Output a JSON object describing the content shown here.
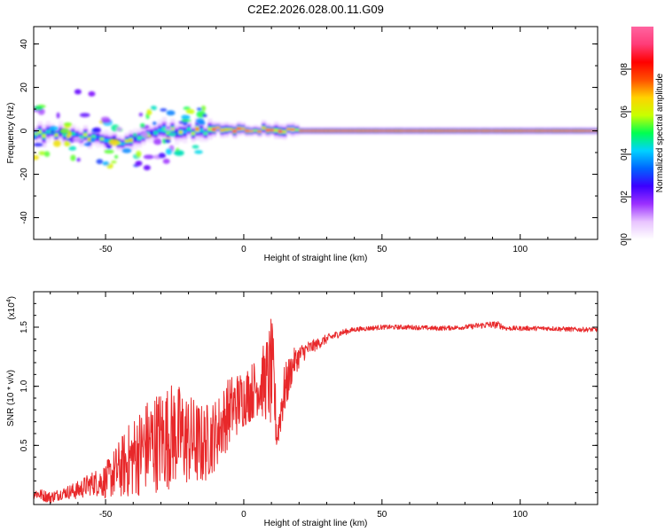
{
  "figure_title": "C2E2.2026.028.00.11.G09",
  "chart_data": [
    {
      "type": "heatmap",
      "title": "C2E2.2026.028.00.11.G09",
      "xlabel": "Height of straight line (km)",
      "ylabel": "Frequency (Hz)",
      "xlim": [
        -76,
        128
      ],
      "ylim": [
        -50,
        48
      ],
      "xticks": [
        -50,
        0,
        50,
        100
      ],
      "xtick_labels": [
        "-50",
        "0",
        "50",
        "100"
      ],
      "yticks": [
        -40,
        -20,
        0,
        20,
        40
      ],
      "ytick_labels": [
        "-40",
        "-20",
        "0",
        "20",
        "40"
      ],
      "colorbar": {
        "label": "Normalized spectral amplitude",
        "range": [
          0,
          1
        ],
        "ticks": [
          0.0,
          0.2,
          0.4,
          0.6,
          0.8
        ],
        "tick_labels": [
          "0.0",
          "0.2",
          "0.4",
          "0.6",
          "0.8"
        ],
        "colors": [
          "#ffffff",
          "#e8c4ff",
          "#9b30ff",
          "#3c00ff",
          "#0064ff",
          "#00d2ff",
          "#00ff50",
          "#c8ff00",
          "#ffd200",
          "#ff5000",
          "#ff0000",
          "#ff3c78",
          "#ff64a0"
        ]
      },
      "ridge_frequency_hz": [
        {
          "x": -76,
          "y": -2
        },
        {
          "x": -70,
          "y": -1
        },
        {
          "x": -64,
          "y": -2
        },
        {
          "x": -58,
          "y": -3
        },
        {
          "x": -52,
          "y": -4
        },
        {
          "x": -46,
          "y": -5
        },
        {
          "x": -40,
          "y": -4
        },
        {
          "x": -34,
          "y": -2
        },
        {
          "x": -30,
          "y": 0
        },
        {
          "x": -25,
          "y": 0
        },
        {
          "x": -20,
          "y": 0
        },
        {
          "x": -15,
          "y": 0
        },
        {
          "x": -10,
          "y": 1
        },
        {
          "x": -5,
          "y": 1
        },
        {
          "x": 0,
          "y": 0
        },
        {
          "x": 8,
          "y": 1
        },
        {
          "x": 15,
          "y": 0
        },
        {
          "x": 20,
          "y": 0
        },
        {
          "x": 128,
          "y": 0
        }
      ]
    },
    {
      "type": "line",
      "xlabel": "Height of straight line (km)",
      "ylabel": "SNR (10 * v/v)",
      "y_exponent_label": "(x10",
      "y_exponent_power": "4",
      "y_exponent_close": ")",
      "xlim": [
        -76,
        128
      ],
      "ylim": [
        0,
        1.8
      ],
      "xticks": [
        -50,
        0,
        50,
        100
      ],
      "xtick_labels": [
        "-50",
        "0",
        "50",
        "100"
      ],
      "yticks": [
        0.5,
        1.0,
        1.5
      ],
      "ytick_labels": [
        "0.5",
        "1.0",
        "1.5"
      ],
      "series": [
        {
          "name": "SNR",
          "color": "#e8282a",
          "x": [
            -76,
            -70,
            -65,
            -60,
            -55,
            -50,
            -45,
            -40,
            -35,
            -30,
            -25,
            -20,
            -15,
            -10,
            -5,
            0,
            5,
            8,
            10,
            11,
            12,
            14,
            18,
            22,
            26,
            30,
            35,
            40,
            50,
            60,
            70,
            80,
            88,
            92,
            95,
            100,
            110,
            120,
            128
          ],
          "y": [
            0.1,
            0.06,
            0.1,
            0.12,
            0.18,
            0.2,
            0.3,
            0.4,
            0.5,
            0.55,
            0.6,
            0.55,
            0.5,
            0.6,
            0.8,
            0.9,
            1.0,
            1.05,
            1.1,
            0.95,
            0.55,
            0.9,
            1.2,
            1.3,
            1.35,
            1.4,
            1.45,
            1.48,
            1.5,
            1.5,
            1.49,
            1.5,
            1.52,
            1.52,
            1.49,
            1.49,
            1.49,
            1.48,
            1.48
          ],
          "noise_amplitude": [
            0.05,
            0.05,
            0.05,
            0.08,
            0.1,
            0.15,
            0.25,
            0.35,
            0.4,
            0.45,
            0.45,
            0.4,
            0.35,
            0.3,
            0.3,
            0.25,
            0.25,
            0.35,
            0.5,
            0.4,
            0.1,
            0.25,
            0.12,
            0.08,
            0.05,
            0.04,
            0.03,
            0.02,
            0.02,
            0.02,
            0.02,
            0.02,
            0.03,
            0.03,
            0.02,
            0.02,
            0.02,
            0.02,
            0.02
          ]
        }
      ]
    }
  ]
}
